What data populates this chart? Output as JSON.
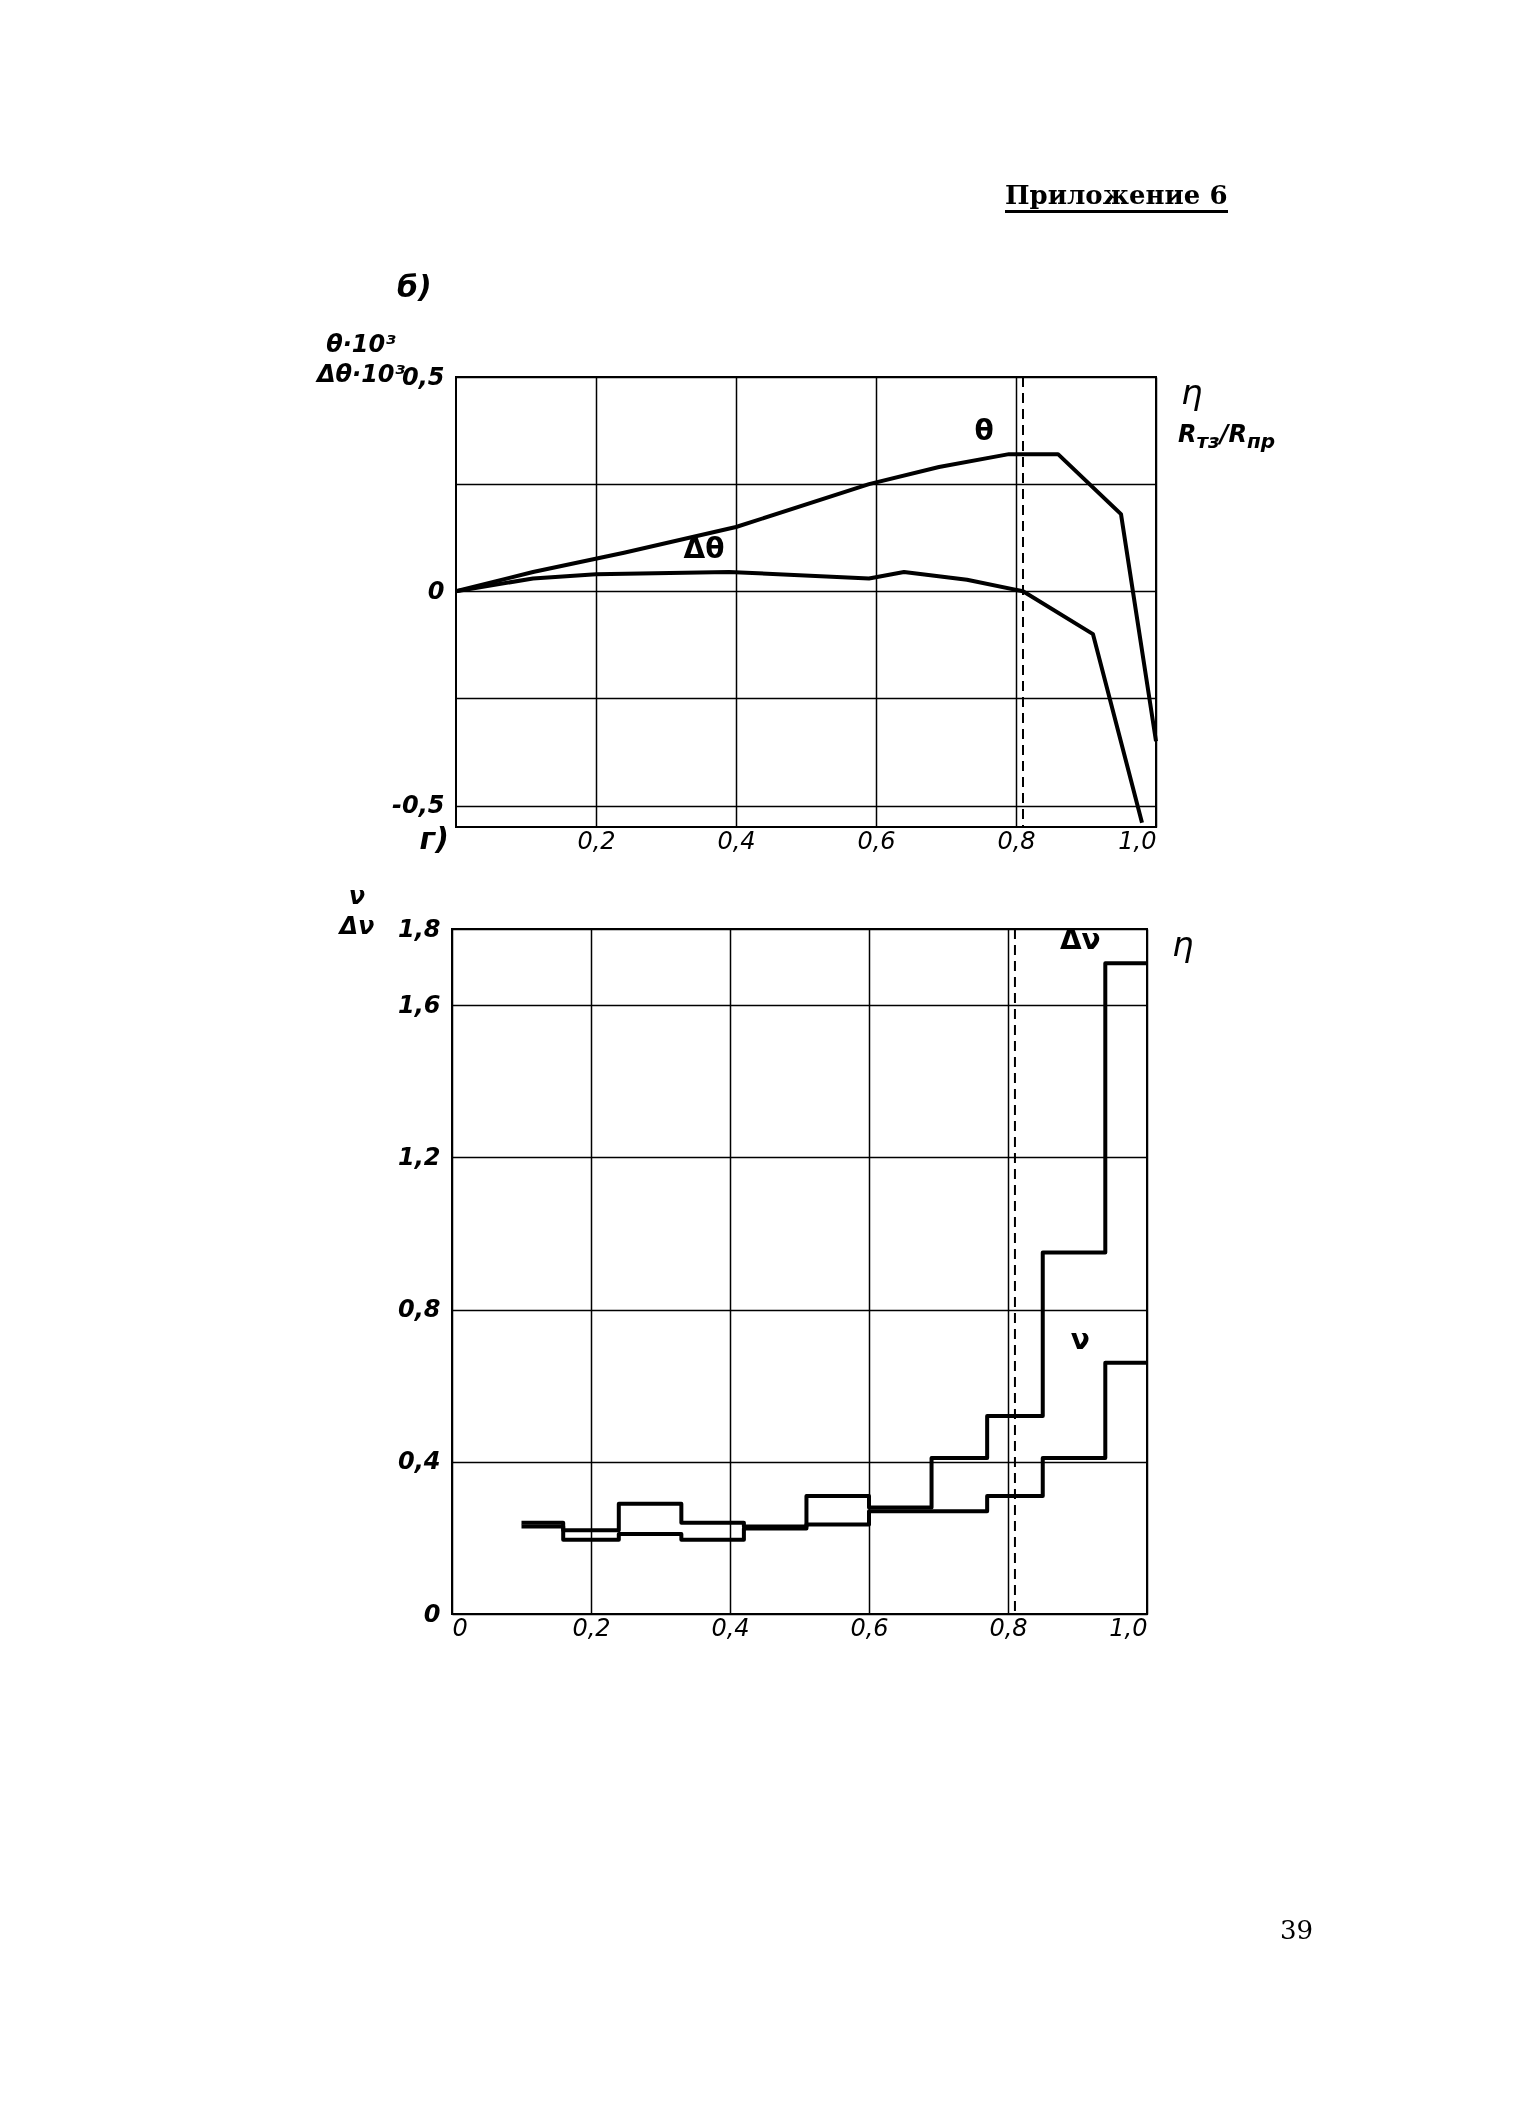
{
  "chart_data": [
    {
      "type": "line",
      "title": "б)",
      "xlabel": "η",
      "ylabel": "θ·10³\nΔθ·10³",
      "xlim": [
        0,
        1
      ],
      "xticks": [
        {
          "value": 0.2,
          "label": "0,2"
        },
        {
          "value": 0.4,
          "label": "0,4"
        },
        {
          "value": 0.6,
          "label": "0,6"
        },
        {
          "value": 0.8,
          "label": "0,8"
        },
        {
          "value": 1.0,
          "label": "1,0"
        }
      ],
      "ylim": [
        -0.55,
        0.5
      ],
      "yticks": [
        {
          "value": -0.5,
          "label": "-0,5"
        },
        {
          "value": -0.25,
          "label": null
        },
        0,
        {
          "value": 0.25,
          "label": null
        },
        {
          "value": 0.5,
          "label": "0,5"
        }
      ],
      "grid": true,
      "legend": false,
      "series": [
        {
          "name": "θ",
          "color": "#000000",
          "x": [
            0,
            0.11,
            0.24,
            0.4,
            0.59,
            0.69,
            0.79,
            0.86,
            0.95,
            1.0
          ],
          "values": [
            0,
            0.045,
            0.09,
            0.15,
            0.25,
            0.29,
            0.32,
            0.32,
            0.18,
            -0.35
          ]
        },
        {
          "name": "Δθ",
          "color": "#000000",
          "x": [
            0,
            0.11,
            0.2,
            0.39,
            0.59,
            0.64,
            0.73,
            0.81,
            0.91,
            0.98
          ],
          "values": [
            0,
            0.03,
            0.04,
            0.045,
            0.03,
            0.045,
            0.027,
            0,
            -0.1,
            -0.54
          ]
        }
      ],
      "ref_lines": [
        {
          "axis": "x",
          "value": 0.81,
          "line_style": "dashed",
          "color": "#000000"
        }
      ],
      "annotations": [
        "Приложение 6",
        "R$_{тз}$/R$_{пр}$"
      ]
    },
    {
      "type": "step",
      "title": "г)",
      "xlabel": "η",
      "ylabel": "ν\nΔν",
      "xlim": [
        0,
        1
      ],
      "xticks": [
        0,
        {
          "value": 0.2,
          "label": "0,2"
        },
        {
          "value": 0.4,
          "label": "0,4"
        },
        {
          "value": 0.6,
          "label": "0,6"
        },
        {
          "value": 0.8,
          "label": "0,8"
        },
        {
          "value": 1.0,
          "label": "1,0"
        }
      ],
      "ylim": [
        0,
        1.8
      ],
      "yticks": [
        0,
        {
          "value": 0.4,
          "label": "0,4"
        },
        {
          "value": 0.8,
          "label": "0,8"
        },
        {
          "value": 1.2,
          "label": "1,2"
        },
        {
          "value": 1.6,
          "label": "1,6"
        },
        {
          "value": 1.8,
          "label": "1,8"
        }
      ],
      "grid": true,
      "legend": false,
      "series": [
        {
          "name": "Δν",
          "color": "#000000",
          "x": [
            0.1,
            0.16,
            0.24,
            0.33,
            0.42,
            0.51,
            0.6,
            0.69,
            0.77,
            0.85,
            0.94,
            1.0
          ],
          "values": [
            0.24,
            0.22,
            0.29,
            0.24,
            0.23,
            0.31,
            0.28,
            0.41,
            0.52,
            0.95,
            1.71,
            1.71
          ]
        },
        {
          "name": "ν",
          "color": "#000000",
          "x": [
            0.1,
            0.16,
            0.24,
            0.33,
            0.42,
            0.51,
            0.6,
            0.69,
            0.77,
            0.85,
            0.94,
            1.0
          ],
          "values": [
            0.23,
            0.195,
            0.21,
            0.195,
            0.225,
            0.235,
            0.27,
            0.27,
            0.31,
            0.41,
            0.66,
            0.66
          ]
        }
      ],
      "ref_lines": [
        {
          "axis": "x",
          "value": 0.81,
          "line_style": "dashed",
          "color": "#000000"
        }
      ],
      "annotations": [
        "39"
      ]
    }
  ]
}
